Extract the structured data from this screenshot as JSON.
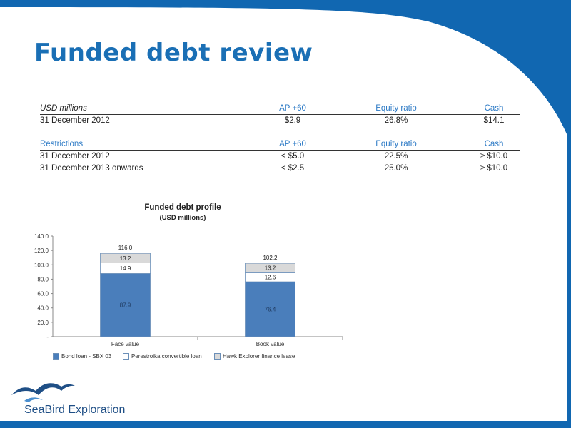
{
  "slide": {
    "title": "Funded debt review",
    "colors": {
      "brand_blue": "#1167b1",
      "title_blue": "#1a6fb5",
      "header_blue": "#2e7bc6"
    }
  },
  "table1": {
    "headers": [
      "USD millions",
      "AP +60",
      "Equity ratio",
      "Cash"
    ],
    "rows": [
      [
        "31 December 2012",
        "$2.9",
        "26.8%",
        "$14.1"
      ]
    ]
  },
  "table2": {
    "headers": [
      "Restrictions",
      "AP +60",
      "Equity ratio",
      "Cash"
    ],
    "rows": [
      [
        "31 December 2012",
        "< $5.0",
        "22.5%",
        "≥ $10.0"
      ],
      [
        "31 December 2013 onwards",
        "< $2.5",
        "25.0%",
        "≥ $10.0"
      ]
    ]
  },
  "chart_data": {
    "type": "bar",
    "stacked": true,
    "title": "Funded debt profile",
    "subtitle": "(USD millions)",
    "categories": [
      "Face value",
      "Book value"
    ],
    "series": [
      {
        "name": "Bond loan - SBX 03",
        "values": [
          87.9,
          76.4
        ],
        "color": "#4a7ebb",
        "label_color": "#1f3a5f"
      },
      {
        "name": "Perestroika convertible loan",
        "values": [
          14.9,
          12.6
        ],
        "color": "#ffffff",
        "label_color": "#222222"
      },
      {
        "name": "Hawk Explorer finance lease",
        "values": [
          13.2,
          13.2
        ],
        "color": "#d9d9d9",
        "label_color": "#222222"
      }
    ],
    "totals": [
      116.0,
      102.2
    ],
    "ylim": [
      0,
      140
    ],
    "yticks": [
      "-",
      "20.0",
      "40.0",
      "60.0",
      "80.0",
      "100.0",
      "120.0",
      "140.0"
    ],
    "legend": "bottom"
  },
  "footer": {
    "logo_text": "SeaBird Exploration",
    "logo_icon": "seabird-logo-icon"
  }
}
